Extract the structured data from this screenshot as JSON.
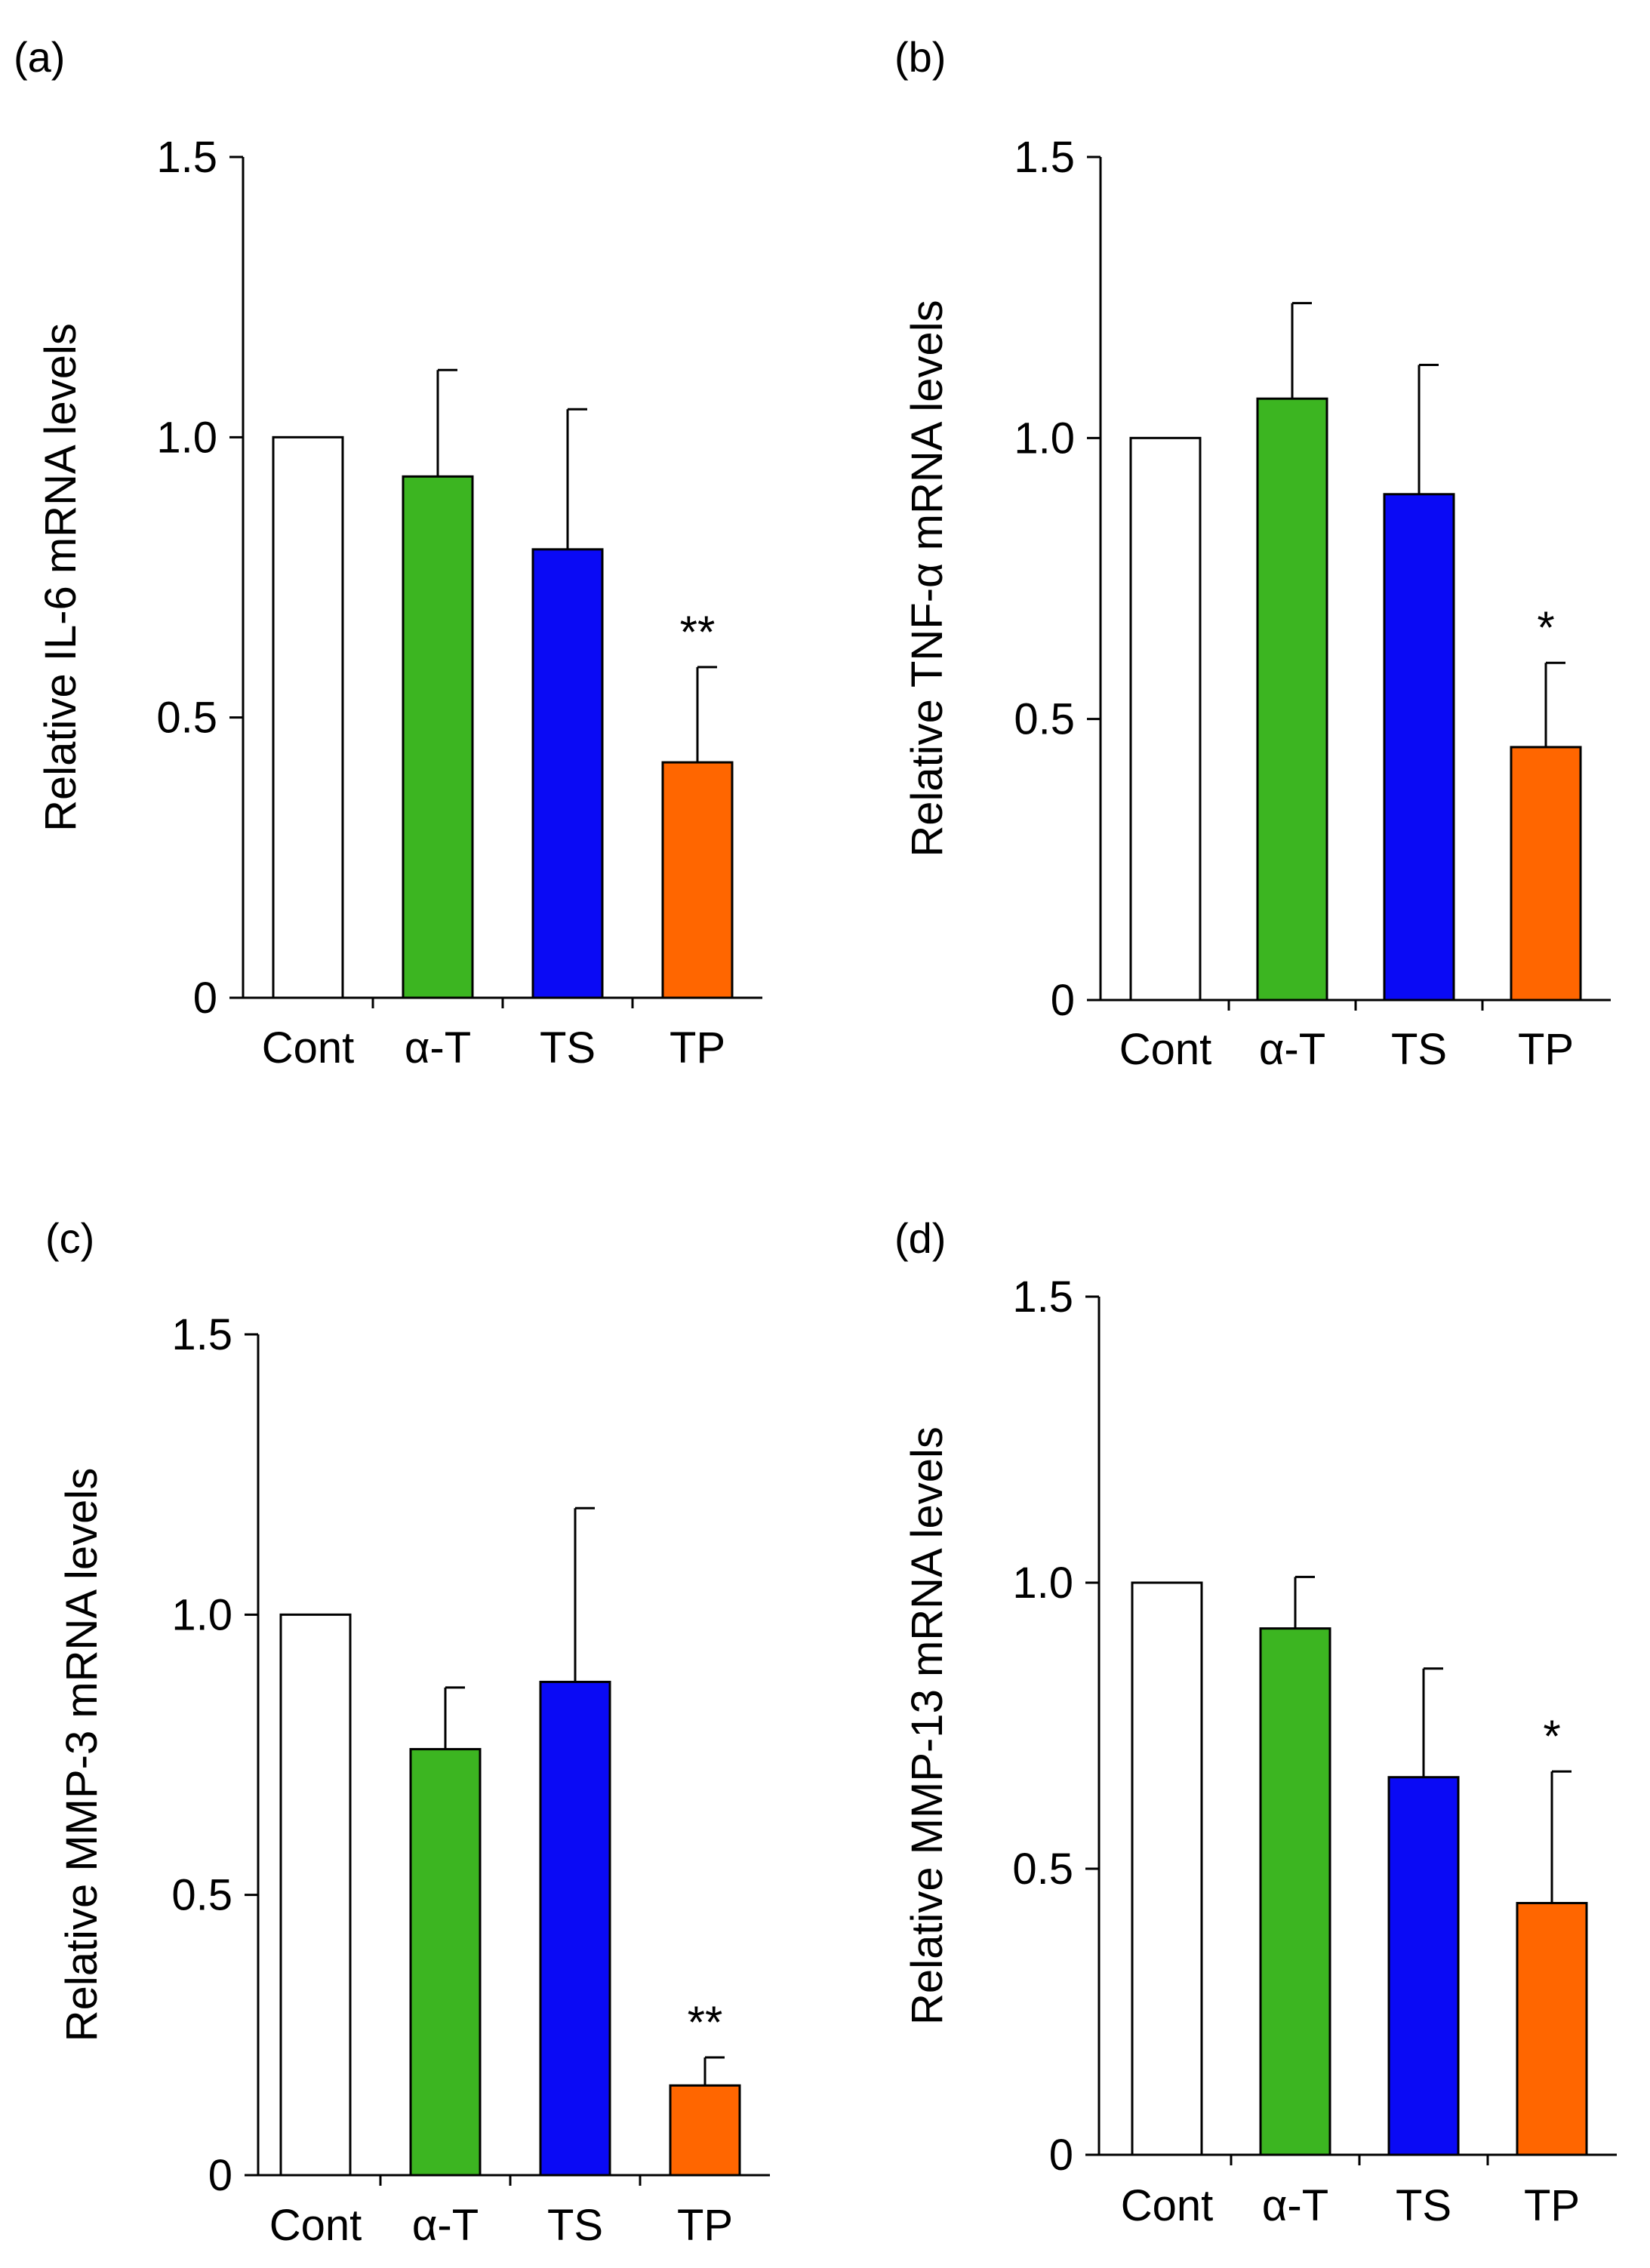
{
  "chart_data": [
    {
      "panel_label": "(a)",
      "type": "bar",
      "ylabel": "Relative IL-6 mRNA levels",
      "ylim": [
        0,
        1.5
      ],
      "yticks": [
        "0",
        "0.5",
        "1.0",
        "1.5"
      ],
      "categories": [
        "Cont",
        "α-T",
        "TS",
        "TP"
      ],
      "values": [
        1.0,
        0.93,
        0.8,
        0.42
      ],
      "errors": [
        0,
        0.19,
        0.25,
        0.17
      ],
      "significance": [
        "",
        "",
        "",
        "**"
      ]
    },
    {
      "panel_label": "(b)",
      "type": "bar",
      "ylabel": "Relative TNF-α mRNA levels",
      "ylim": [
        0,
        1.5
      ],
      "yticks": [
        "0",
        "0.5",
        "1.0",
        "1.5"
      ],
      "categories": [
        "Cont",
        "α-T",
        "TS",
        "TP"
      ],
      "values": [
        1.0,
        1.07,
        0.9,
        0.45
      ],
      "errors": [
        0,
        0.17,
        0.23,
        0.15
      ],
      "significance": [
        "",
        "",
        "",
        "*"
      ]
    },
    {
      "panel_label": "(c)",
      "type": "bar",
      "ylabel": "Relative MMP-3 mRNA levels",
      "ylim": [
        0,
        1.5
      ],
      "yticks": [
        "0",
        "0.5",
        "1.0",
        "1.5"
      ],
      "categories": [
        "Cont",
        "α-T",
        "TS",
        "TP"
      ],
      "values": [
        1.0,
        0.76,
        0.88,
        0.16
      ],
      "errors": [
        0,
        0.11,
        0.31,
        0.05
      ],
      "significance": [
        "",
        "",
        "",
        "**"
      ]
    },
    {
      "panel_label": "(d)",
      "type": "bar",
      "ylabel": "Relative MMP-13 mRNA levels",
      "ylim": [
        0,
        1.5
      ],
      "yticks": [
        "0",
        "0.5",
        "1.0",
        "1.5"
      ],
      "categories": [
        "Cont",
        "α-T",
        "TS",
        "TP"
      ],
      "values": [
        1.0,
        0.92,
        0.66,
        0.44
      ],
      "errors": [
        0,
        0.09,
        0.19,
        0.23
      ],
      "significance": [
        "",
        "",
        "",
        "*"
      ]
    }
  ],
  "colors": {
    "Cont": "#ffffff",
    "α-T": "#3cb521",
    "TS": "#0a0af5",
    "TP": "#ff6600",
    "stroke": "#000000"
  }
}
